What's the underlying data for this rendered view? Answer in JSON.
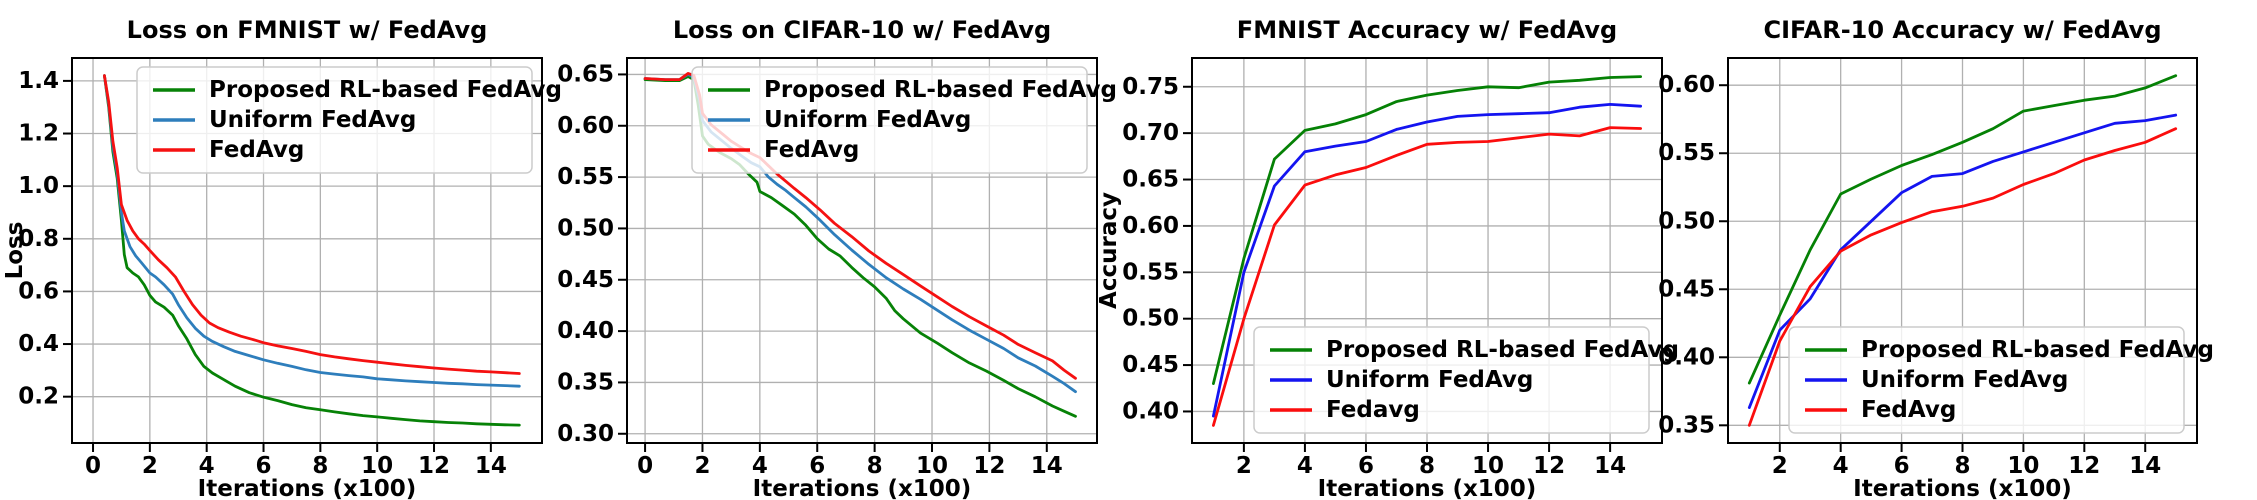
{
  "figure": {
    "background": "#ffffff",
    "grid_color": "#b0b0b0",
    "spine_color": "#000000",
    "legend_border": "#cccccc",
    "legend_bg": "rgba(255,255,255,0.8)"
  },
  "chart_data": [
    {
      "type": "line",
      "id": "loss-fmnist",
      "title": "Loss on FMNIST w/ FedAvg",
      "xlabel": "Iterations (x100)",
      "ylabel": "Loss",
      "xlim": [
        -0.74,
        15.8
      ],
      "ylim": [
        0.024,
        1.487
      ],
      "grid": true,
      "legend_position": "upper-right",
      "xticks": [
        0,
        2,
        4,
        6,
        8,
        10,
        12,
        14
      ],
      "xticklabels": [
        "0",
        "2",
        "4",
        "6",
        "8",
        "10",
        "12",
        "14"
      ],
      "yticks": [
        0.2,
        0.4,
        0.6,
        0.8,
        1.0,
        1.2,
        1.4
      ],
      "yticklabels": [
        "0.2",
        "0.4",
        "0.6",
        "0.8",
        "1.0",
        "1.2",
        "1.4"
      ],
      "series": [
        {
          "name": "Proposed RL-based FedAvg",
          "color": "#078207",
          "x": [
            0.4,
            0.55,
            0.7,
            0.85,
            1.0,
            1.1,
            1.2,
            1.4,
            1.6,
            1.8,
            2.0,
            2.2,
            2.5,
            2.8,
            3.0,
            3.3,
            3.6,
            3.9,
            4.2,
            4.6,
            5.0,
            5.5,
            6.0,
            6.5,
            7.0,
            7.5,
            8.0,
            8.5,
            9.0,
            9.5,
            10.0,
            10.5,
            11.0,
            11.5,
            12.0,
            12.5,
            13.0,
            13.5,
            14.0,
            14.5,
            15.0
          ],
          "y": [
            1.42,
            1.3,
            1.13,
            1.03,
            0.87,
            0.74,
            0.69,
            0.67,
            0.655,
            0.625,
            0.585,
            0.56,
            0.54,
            0.51,
            0.47,
            0.42,
            0.36,
            0.315,
            0.29,
            0.265,
            0.24,
            0.215,
            0.198,
            0.185,
            0.17,
            0.158,
            0.15,
            0.142,
            0.135,
            0.128,
            0.123,
            0.118,
            0.113,
            0.108,
            0.105,
            0.102,
            0.1,
            0.097,
            0.095,
            0.093,
            0.092
          ]
        },
        {
          "name": "Uniform FedAvg",
          "color": "#2e7ebc",
          "x": [
            0.4,
            0.55,
            0.7,
            0.85,
            1.0,
            1.1,
            1.3,
            1.5,
            1.7,
            2.0,
            2.2,
            2.5,
            2.8,
            3.0,
            3.3,
            3.6,
            3.9,
            4.2,
            4.6,
            5.0,
            5.5,
            6.0,
            6.5,
            7.0,
            7.5,
            8.0,
            8.5,
            9.0,
            9.5,
            10.0,
            10.5,
            11.0,
            11.5,
            12.0,
            12.5,
            13.0,
            13.5,
            14.0,
            14.5,
            15.0
          ],
          "y": [
            1.42,
            1.31,
            1.15,
            1.05,
            0.9,
            0.83,
            0.77,
            0.735,
            0.71,
            0.67,
            0.655,
            0.625,
            0.59,
            0.55,
            0.5,
            0.46,
            0.43,
            0.41,
            0.39,
            0.372,
            0.356,
            0.34,
            0.327,
            0.315,
            0.302,
            0.292,
            0.286,
            0.28,
            0.275,
            0.268,
            0.264,
            0.26,
            0.257,
            0.254,
            0.251,
            0.249,
            0.246,
            0.244,
            0.242,
            0.24
          ]
        },
        {
          "name": "FedAvg",
          "color": "#f51111",
          "x": [
            0.4,
            0.55,
            0.7,
            0.85,
            1.0,
            1.2,
            1.4,
            1.6,
            1.8,
            2.0,
            2.3,
            2.6,
            2.9,
            3.2,
            3.5,
            3.8,
            4.1,
            4.4,
            4.8,
            5.2,
            5.6,
            6.0,
            6.5,
            7.0,
            7.5,
            8.0,
            8.5,
            9.0,
            9.5,
            10.0,
            10.5,
            11.0,
            11.5,
            12.0,
            12.5,
            13.0,
            13.5,
            14.0,
            14.5,
            15.0
          ],
          "y": [
            1.42,
            1.32,
            1.17,
            1.07,
            0.93,
            0.87,
            0.83,
            0.8,
            0.78,
            0.755,
            0.72,
            0.69,
            0.655,
            0.6,
            0.55,
            0.51,
            0.48,
            0.462,
            0.445,
            0.43,
            0.418,
            0.405,
            0.393,
            0.383,
            0.372,
            0.36,
            0.351,
            0.344,
            0.337,
            0.331,
            0.325,
            0.319,
            0.314,
            0.309,
            0.305,
            0.301,
            0.297,
            0.294,
            0.291,
            0.288
          ]
        }
      ]
    },
    {
      "type": "line",
      "id": "loss-cifar10",
      "title": "Loss on CIFAR-10 w/ FedAvg",
      "xlabel": "Iterations (x100)",
      "ylabel": "",
      "xlim": [
        -0.63,
        15.75
      ],
      "ylim": [
        0.291,
        0.666
      ],
      "grid": true,
      "legend_position": "upper-right",
      "xticks": [
        0,
        2,
        4,
        6,
        8,
        10,
        12,
        14
      ],
      "xticklabels": [
        "0",
        "2",
        "4",
        "6",
        "8",
        "10",
        "12",
        "14"
      ],
      "yticks": [
        0.3,
        0.35,
        0.4,
        0.45,
        0.5,
        0.55,
        0.6,
        0.65
      ],
      "yticklabels": [
        "0.30",
        "0.35",
        "0.40",
        "0.45",
        "0.50",
        "0.55",
        "0.60",
        "0.65"
      ],
      "series": [
        {
          "name": "Proposed RL-based FedAvg",
          "color": "#078207",
          "x": [
            0,
            0.7,
            1.2,
            1.5,
            1.7,
            1.85,
            2.0,
            2.2,
            2.6,
            3.0,
            3.3,
            3.6,
            3.9,
            4.0,
            4.4,
            4.8,
            5.2,
            5.6,
            6.0,
            6.4,
            6.8,
            7.2,
            7.6,
            8.0,
            8.4,
            8.7,
            9.0,
            9.6,
            10.2,
            10.7,
            11.3,
            11.9,
            12.5,
            13.0,
            13.6,
            14.2,
            14.6,
            15.0
          ],
          "y": [
            0.645,
            0.644,
            0.644,
            0.648,
            0.645,
            0.62,
            0.59,
            0.582,
            0.574,
            0.568,
            0.562,
            0.553,
            0.545,
            0.536,
            0.53,
            0.522,
            0.514,
            0.503,
            0.49,
            0.48,
            0.473,
            0.462,
            0.452,
            0.443,
            0.432,
            0.42,
            0.412,
            0.398,
            0.388,
            0.379,
            0.369,
            0.361,
            0.352,
            0.344,
            0.336,
            0.327,
            0.322,
            0.317
          ]
        },
        {
          "name": "Uniform FedAvg",
          "color": "#2e7ebc",
          "x": [
            0,
            0.7,
            1.2,
            1.5,
            1.7,
            1.9,
            2.0,
            2.3,
            2.7,
            3.0,
            3.4,
            3.7,
            4.0,
            4.3,
            4.6,
            4.9,
            5.2,
            5.6,
            6.1,
            6.6,
            7.2,
            7.8,
            8.4,
            9.0,
            9.6,
            10.2,
            10.7,
            11.3,
            11.9,
            12.5,
            13.0,
            13.6,
            14.2,
            14.6,
            15.0
          ],
          "y": [
            0.646,
            0.645,
            0.645,
            0.65,
            0.647,
            0.625,
            0.605,
            0.594,
            0.585,
            0.578,
            0.57,
            0.564,
            0.56,
            0.55,
            0.543,
            0.537,
            0.53,
            0.521,
            0.508,
            0.494,
            0.479,
            0.465,
            0.452,
            0.441,
            0.431,
            0.42,
            0.411,
            0.401,
            0.392,
            0.383,
            0.374,
            0.366,
            0.356,
            0.349,
            0.341
          ]
        },
        {
          "name": "FedAvg",
          "color": "#f51111",
          "x": [
            0,
            0.7,
            1.2,
            1.5,
            1.7,
            1.9,
            2.0,
            2.3,
            2.7,
            3.0,
            3.4,
            3.7,
            4.0,
            4.3,
            4.6,
            4.9,
            5.2,
            5.6,
            6.1,
            6.6,
            7.2,
            7.8,
            8.4,
            9.0,
            9.6,
            10.2,
            10.7,
            11.3,
            11.9,
            12.5,
            13.0,
            13.6,
            14.2,
            14.6,
            15.0
          ],
          "y": [
            0.646,
            0.645,
            0.645,
            0.651,
            0.649,
            0.63,
            0.612,
            0.601,
            0.592,
            0.585,
            0.578,
            0.573,
            0.569,
            0.561,
            0.553,
            0.546,
            0.539,
            0.53,
            0.518,
            0.505,
            0.492,
            0.478,
            0.466,
            0.455,
            0.444,
            0.433,
            0.424,
            0.414,
            0.405,
            0.396,
            0.387,
            0.379,
            0.371,
            0.362,
            0.354
          ]
        }
      ]
    },
    {
      "type": "line",
      "id": "accuracy-fmnist",
      "title": "FMNIST Accuracy w/ FedAvg",
      "xlabel": "Iterations (x100)",
      "ylabel": "Accuracy",
      "xlim": [
        0.3,
        15.7
      ],
      "ylim": [
        0.366,
        0.781
      ],
      "grid": true,
      "legend_position": "lower-right",
      "xticks": [
        2,
        4,
        6,
        8,
        10,
        12,
        14
      ],
      "xticklabels": [
        "2",
        "4",
        "6",
        "8",
        "10",
        "12",
        "14"
      ],
      "yticks": [
        0.4,
        0.45,
        0.5,
        0.55,
        0.6,
        0.65,
        0.7,
        0.75
      ],
      "yticklabels": [
        "0.40",
        "0.45",
        "0.50",
        "0.55",
        "0.60",
        "0.65",
        "0.70",
        "0.75"
      ],
      "series": [
        {
          "name": "Proposed RL-based FedAvg",
          "color": "#058105",
          "x": [
            1,
            2,
            3,
            4,
            5,
            6,
            7,
            8,
            9,
            10,
            11,
            12,
            13,
            14,
            15
          ],
          "y": [
            0.43,
            0.565,
            0.672,
            0.703,
            0.71,
            0.72,
            0.734,
            0.741,
            0.746,
            0.75,
            0.749,
            0.755,
            0.757,
            0.76,
            0.761
          ]
        },
        {
          "name": "Uniform FedAvg",
          "color": "#1414f0",
          "x": [
            1,
            2,
            3,
            4,
            5,
            6,
            7,
            8,
            9,
            10,
            11,
            12,
            13,
            14,
            15
          ],
          "y": [
            0.395,
            0.55,
            0.643,
            0.68,
            0.686,
            0.691,
            0.704,
            0.712,
            0.718,
            0.72,
            0.721,
            0.722,
            0.728,
            0.731,
            0.729
          ]
        },
        {
          "name": "Fedavg",
          "color": "#fb0d0d",
          "x": [
            1,
            2,
            3,
            4,
            5,
            6,
            7,
            8,
            9,
            10,
            11,
            12,
            13,
            14,
            15
          ],
          "y": [
            0.385,
            0.5,
            0.601,
            0.644,
            0.655,
            0.663,
            0.676,
            0.688,
            0.69,
            0.691,
            0.695,
            0.699,
            0.697,
            0.706,
            0.705
          ]
        }
      ]
    },
    {
      "type": "line",
      "id": "accuracy-cifar10",
      "title": "CIFAR-10 Accuracy w/ FedAvg",
      "xlabel": "Iterations (x100)",
      "ylabel": "",
      "xlim": [
        0.3,
        15.7
      ],
      "ylim": [
        0.337,
        0.62
      ],
      "grid": true,
      "legend_position": "lower-right",
      "xticks": [
        2,
        4,
        6,
        8,
        10,
        12,
        14
      ],
      "xticklabels": [
        "2",
        "4",
        "6",
        "8",
        "10",
        "12",
        "14"
      ],
      "yticks": [
        0.35,
        0.4,
        0.45,
        0.5,
        0.55,
        0.6
      ],
      "yticklabels": [
        "0.35",
        "0.40",
        "0.45",
        "0.50",
        "0.55",
        "0.60"
      ],
      "series": [
        {
          "name": "Proposed RL-based FedAvg",
          "color": "#058105",
          "x": [
            1,
            2,
            3,
            4,
            5,
            6,
            7,
            8,
            9,
            10,
            11,
            12,
            13,
            14,
            15
          ],
          "y": [
            0.381,
            0.431,
            0.479,
            0.52,
            0.531,
            0.541,
            0.549,
            0.558,
            0.568,
            0.581,
            0.585,
            0.589,
            0.592,
            0.598,
            0.607
          ]
        },
        {
          "name": "Uniform FedAvg",
          "color": "#1414f0",
          "x": [
            1,
            2,
            3,
            4,
            5,
            6,
            7,
            8,
            9,
            10,
            11,
            12,
            13,
            14,
            15
          ],
          "y": [
            0.363,
            0.42,
            0.443,
            0.479,
            0.5,
            0.521,
            0.533,
            0.535,
            0.544,
            0.551,
            0.558,
            0.565,
            0.572,
            0.574,
            0.578
          ]
        },
        {
          "name": "FedAvg",
          "color": "#fb0d0d",
          "x": [
            1,
            2,
            3,
            4,
            5,
            6,
            7,
            8,
            9,
            10,
            11,
            12,
            13,
            14,
            15
          ],
          "y": [
            0.35,
            0.412,
            0.452,
            0.478,
            0.49,
            0.499,
            0.507,
            0.511,
            0.517,
            0.527,
            0.535,
            0.545,
            0.552,
            0.558,
            0.568
          ]
        }
      ]
    }
  ]
}
